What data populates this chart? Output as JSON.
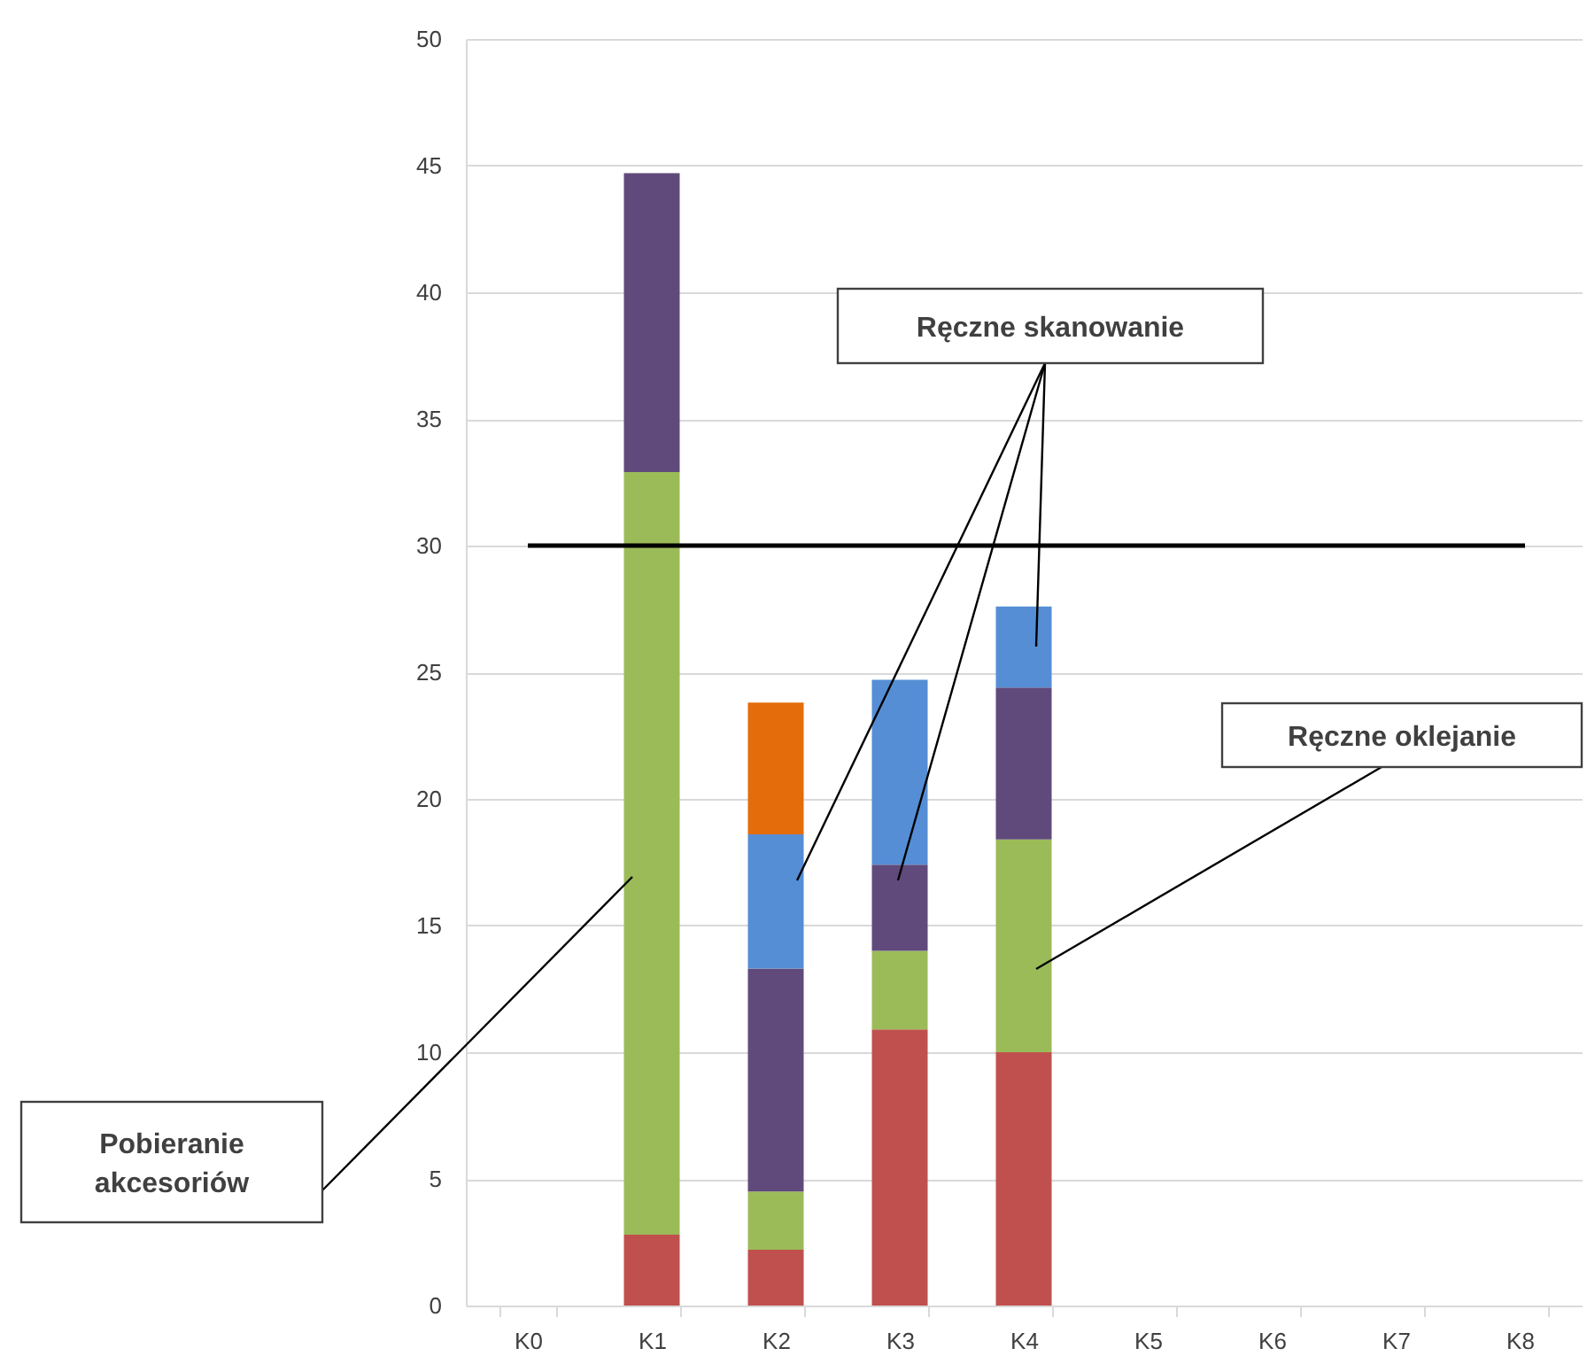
{
  "chart_data": {
    "type": "bar",
    "stacked": true,
    "categories": [
      "K0",
      "K1",
      "K2",
      "K3",
      "K4",
      "K5",
      "K6",
      "K7",
      "K8"
    ],
    "series": [
      {
        "color": "#c0504d",
        "values": [
          null,
          2.8,
          2.2,
          10.9,
          10.0,
          null,
          null,
          null,
          null
        ]
      },
      {
        "color": "#9bbb59",
        "values": [
          null,
          30.1,
          2.3,
          3.1,
          8.4,
          null,
          null,
          null,
          null
        ]
      },
      {
        "color": "#604a7b",
        "values": [
          null,
          11.8,
          8.8,
          3.4,
          6.0,
          null,
          null,
          null,
          null
        ]
      },
      {
        "color": "#558ed5",
        "values": [
          null,
          null,
          5.3,
          7.3,
          3.2,
          null,
          null,
          null,
          null
        ]
      },
      {
        "color": "#e46c0a",
        "values": [
          null,
          null,
          5.2,
          null,
          null,
          null,
          null,
          null,
          null
        ]
      }
    ],
    "ylim": [
      0,
      50
    ],
    "yticks": [
      0,
      5,
      10,
      15,
      20,
      25,
      30,
      35,
      40,
      45,
      50
    ],
    "grid": "y",
    "ref_lines": [
      {
        "axis": "y",
        "value": 30,
        "color": "#000000"
      }
    ],
    "annotations": [
      "Ręczne skanowanie",
      "Ręczne oklejanie",
      "Pobieranie akcesoriów"
    ]
  }
}
